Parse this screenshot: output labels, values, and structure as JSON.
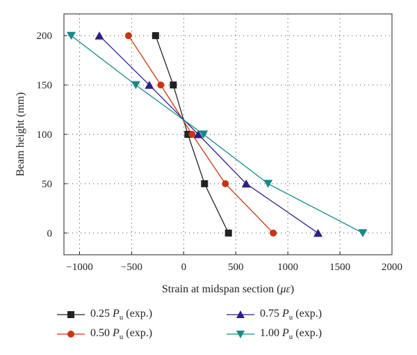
{
  "chart_data": {
    "type": "line",
    "xlabel_prefix": "Strain at midspan section (",
    "xlabel_unit": "μɛ",
    "xlabel_suffix": ")",
    "ylabel": "Beam height (mm)",
    "xlim": [
      -1150,
      2000
    ],
    "ylim": [
      -22,
      222
    ],
    "xticks": [
      -1000,
      -500,
      0,
      500,
      1000,
      1500,
      2000
    ],
    "yticks": [
      0,
      50,
      100,
      150,
      200
    ],
    "grid": "dotted",
    "legend_position": "bottom",
    "series": [
      {
        "name_prefix": "0.25 ",
        "name_var": "P",
        "name_sub": "u",
        "name_suffix": " (exp.)",
        "color": "#222222",
        "marker": "square",
        "x": [
          430,
          200,
          40,
          -100,
          -270
        ],
        "y": [
          0,
          50,
          100,
          150,
          200
        ]
      },
      {
        "name_prefix": "0.50 ",
        "name_var": "P",
        "name_sub": "u",
        "name_suffix": " (exp.)",
        "color": "#cc3311",
        "marker": "circle",
        "x": [
          860,
          400,
          80,
          -220,
          -530
        ],
        "y": [
          0,
          50,
          100,
          150,
          200
        ]
      },
      {
        "name_prefix": "0.75 ",
        "name_var": "P",
        "name_sub": "u",
        "name_suffix": " (exp.)",
        "color": "#2b1f86",
        "marker": "triangle-up",
        "x": [
          1290,
          600,
          140,
          -330,
          -810
        ],
        "y": [
          0,
          50,
          100,
          150,
          200
        ]
      },
      {
        "name_prefix": "1.00 ",
        "name_var": "P",
        "name_sub": "u",
        "name_suffix": " (exp.)",
        "color": "#148a8a",
        "marker": "triangle-down",
        "x": [
          1720,
          810,
          190,
          -460,
          -1080
        ],
        "y": [
          0,
          50,
          100,
          150,
          200
        ]
      }
    ]
  }
}
